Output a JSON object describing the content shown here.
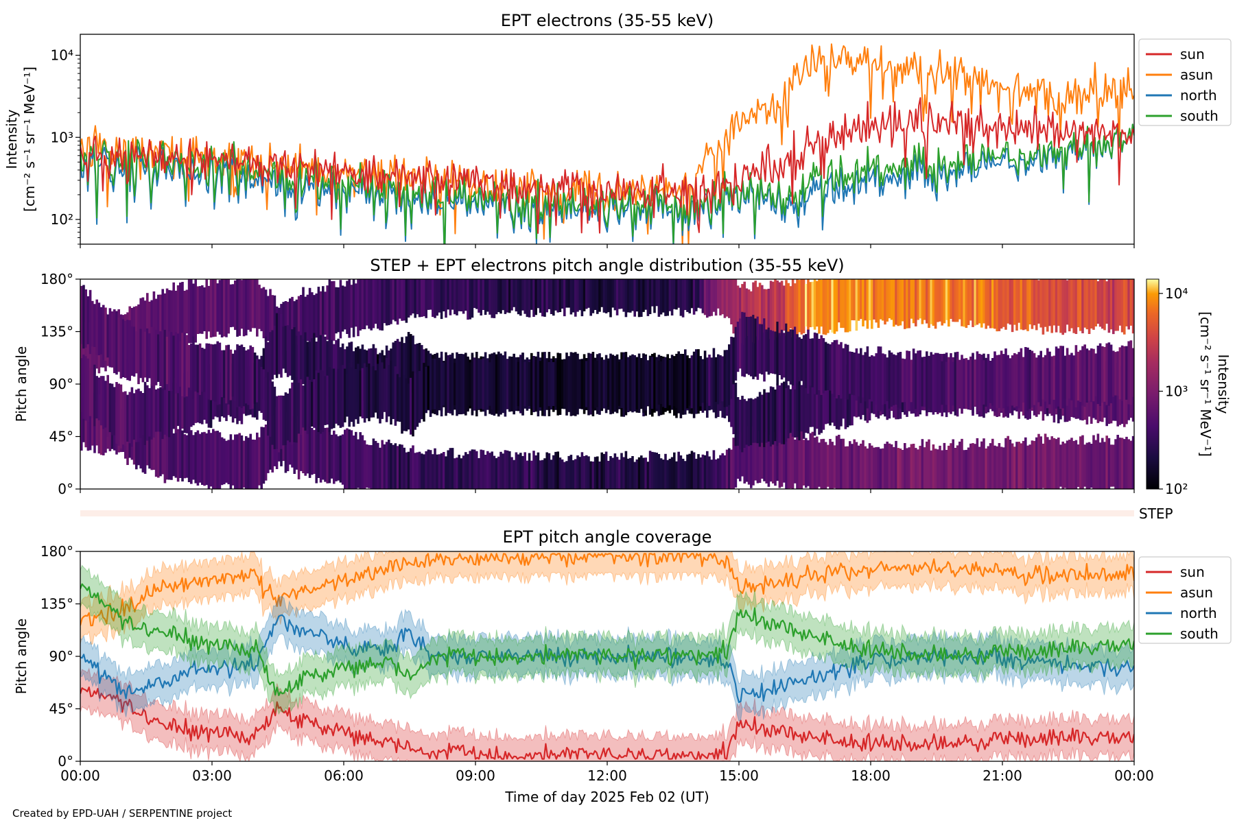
{
  "credit": "Created by EPD-UAH / SERPENTINE project",
  "xlabel": "Time of day 2025 Feb 02 (UT)",
  "x_ticks": [
    "00:00",
    "03:00",
    "06:00",
    "09:00",
    "12:00",
    "15:00",
    "18:00",
    "21:00",
    "00:00"
  ],
  "pitch_ticks": [
    "0°",
    "45°",
    "90°",
    "135°",
    "180°"
  ],
  "colors": {
    "sun": "#d62728",
    "asun": "#ff7f0e",
    "north": "#1f77b4",
    "south": "#2ca02c"
  },
  "chart_data": [
    {
      "type": "line",
      "title": "EPT electrons (35-55 keV)",
      "ylabel": [
        "Intensity",
        "[cm⁻² s⁻¹ sr⁻¹ MeV⁻¹]"
      ],
      "yscale": "log",
      "y_ticks": [
        "10²",
        "10³",
        "10⁴"
      ],
      "ylim": [
        50,
        18000
      ],
      "x": [
        "00:00",
        "02:00",
        "04:00",
        "06:00",
        "08:00",
        "10:00",
        "12:00",
        "14:00",
        "15:00",
        "16:00",
        "16:40",
        "18:00",
        "20:00",
        "22:00",
        "24:00"
      ],
      "series": [
        {
          "name": "sun",
          "values": [
            600,
            550,
            500,
            400,
            320,
            260,
            230,
            220,
            300,
            500,
            900,
            1400,
            1500,
            1400,
            1200
          ]
        },
        {
          "name": "asun",
          "values": [
            700,
            600,
            480,
            380,
            300,
            250,
            220,
            210,
            1500,
            2500,
            9000,
            7000,
            6000,
            3000,
            4000
          ]
        },
        {
          "name": "north",
          "values": [
            500,
            420,
            300,
            220,
            170,
            140,
            130,
            130,
            200,
            150,
            200,
            300,
            400,
            600,
            900
          ]
        },
        {
          "name": "south",
          "values": [
            600,
            500,
            380,
            260,
            200,
            160,
            150,
            150,
            220,
            180,
            300,
            400,
            500,
            700,
            900
          ]
        }
      ],
      "legend": "top-right outside"
    },
    {
      "type": "heatmap",
      "title": "STEP + EPT electrons pitch angle distribution (35-55 keV)",
      "ylabel": "Pitch angle",
      "ylim": [
        0,
        180
      ],
      "colorbar_label": [
        "Intensity",
        "[cm⁻² s⁻¹ sr⁻¹ MeV⁻¹]"
      ],
      "colorbar_ticks": [
        "10²",
        "10³",
        "10⁴"
      ],
      "colorbar_range": [
        100,
        14000
      ],
      "colormap": "inferno",
      "step_label": "STEP",
      "x": [
        "00:00",
        "02:00",
        "04:00",
        "06:00",
        "08:00",
        "10:00",
        "12:00",
        "14:00",
        "15:00",
        "16:00",
        "16:40",
        "18:00",
        "20:00",
        "22:00",
        "24:00"
      ],
      "bands": [
        {
          "name": "sun",
          "values": [
            550,
            500,
            450,
            380,
            300,
            260,
            230,
            220,
            450,
            600,
            700,
            800,
            850,
            800,
            700
          ]
        },
        {
          "name": "asun",
          "values": [
            650,
            600,
            500,
            380,
            300,
            250,
            220,
            210,
            2000,
            3000,
            9000,
            8000,
            7000,
            4000,
            4000
          ]
        },
        {
          "name": "north",
          "values": [
            450,
            400,
            320,
            230,
            180,
            150,
            140,
            140,
            300,
            250,
            300,
            350,
            450,
            500,
            700
          ]
        },
        {
          "name": "south",
          "values": [
            500,
            450,
            350,
            250,
            190,
            160,
            150,
            150,
            320,
            260,
            320,
            380,
            480,
            550,
            700
          ]
        }
      ]
    },
    {
      "type": "line",
      "title": "EPT pitch angle coverage",
      "ylabel": "Pitch angle",
      "ylim": [
        0,
        180
      ],
      "x": [
        "00:00",
        "01:00",
        "02:00",
        "03:00",
        "04:00",
        "04:30",
        "05:00",
        "06:00",
        "07:00",
        "07:30",
        "08:00",
        "10:00",
        "12:00",
        "14:00",
        "14:45",
        "15:00",
        "16:00",
        "18:00",
        "20:00",
        "22:00",
        "24:00"
      ],
      "series": [
        {
          "name": "sun",
          "values": [
            60,
            50,
            30,
            25,
            20,
            45,
            35,
            25,
            15,
            10,
            8,
            5,
            5,
            5,
            8,
            30,
            25,
            15,
            15,
            20,
            20
          ]
        },
        {
          "name": "asun",
          "values": [
            120,
            130,
            150,
            155,
            160,
            135,
            145,
            155,
            165,
            170,
            172,
            175,
            175,
            175,
            172,
            150,
            155,
            165,
            165,
            160,
            160
          ]
        },
        {
          "name": "north",
          "values": [
            90,
            60,
            70,
            80,
            85,
            125,
            110,
            100,
            95,
            110,
            90,
            90,
            90,
            88,
            85,
            55,
            65,
            85,
            90,
            85,
            80
          ]
        },
        {
          "name": "south",
          "values": [
            150,
            120,
            110,
            100,
            95,
            55,
            70,
            80,
            85,
            70,
            90,
            90,
            90,
            92,
            95,
            125,
            115,
            95,
            90,
            95,
            100
          ]
        }
      ],
      "legend": "top-right outside"
    }
  ]
}
